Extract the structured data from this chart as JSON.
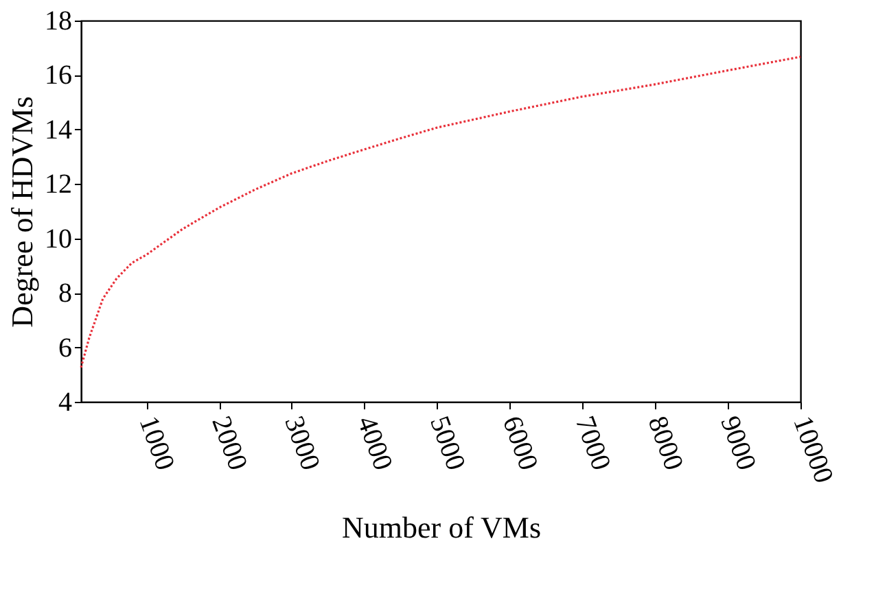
{
  "chart_data": {
    "type": "line",
    "xlabel": "Number of VMs",
    "ylabel": "Degree of HDVMs",
    "x": [
      100,
      213,
      400,
      590,
      800,
      1000,
      1500,
      2000,
      2500,
      3000,
      3500,
      4000,
      4500,
      5000,
      6000,
      7000,
      8000,
      9000,
      10000
    ],
    "series": [
      {
        "color": "#e8303a",
        "values": [
          5.26,
          6.35,
          7.78,
          8.53,
          9.1,
          9.4,
          10.35,
          11.13,
          11.8,
          12.39,
          12.85,
          13.27,
          13.68,
          14.07,
          14.66,
          15.21,
          15.66,
          16.17,
          16.67
        ]
      }
    ],
    "xlim": [
      100,
      10000
    ],
    "xticks": [
      1000,
      2000,
      3000,
      4000,
      5000,
      6000,
      7000,
      8000,
      9000,
      10000
    ],
    "ylim": [
      4,
      18
    ],
    "yticks": [
      4,
      6,
      8,
      10,
      12,
      14,
      16,
      18
    ],
    "grid": false,
    "legend": false,
    "marker": "none",
    "line_style": "dotted"
  }
}
